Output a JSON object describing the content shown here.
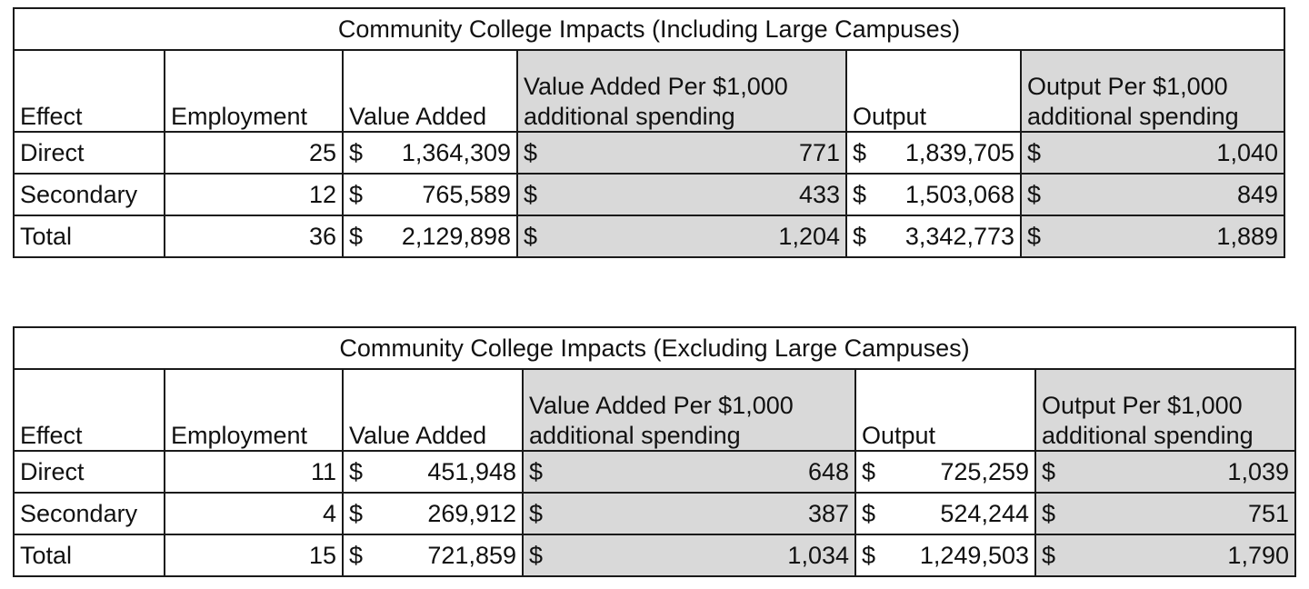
{
  "tables": [
    {
      "title": "Community College Impacts (Including Large Campuses)",
      "headers": {
        "effect": "Effect",
        "employment": "Employment",
        "value_added": "Value Added",
        "va_per_1000_line1": "Value Added Per $1,000",
        "va_per_1000_line2": "additional spending",
        "output": "Output",
        "out_per_1000_line1": "Output Per $1,000",
        "out_per_1000_line2": "additional spending"
      },
      "rows": [
        {
          "effect": "Direct",
          "employment": "25",
          "va_cur": "$",
          "va_val": "1,364,309",
          "vap_cur": "$",
          "vap_val": "771",
          "out_cur": "$",
          "out_val": "1,839,705",
          "outp_cur": "$",
          "outp_val": "1,040"
        },
        {
          "effect": "Secondary",
          "employment": "12",
          "va_cur": "$",
          "va_val": "765,589",
          "vap_cur": "$",
          "vap_val": "433",
          "out_cur": "$",
          "out_val": "1,503,068",
          "outp_cur": "$",
          "outp_val": "849"
        },
        {
          "effect": "Total",
          "employment": "36",
          "va_cur": "$",
          "va_val": "2,129,898",
          "vap_cur": "$",
          "vap_val": "1,204",
          "out_cur": "$",
          "out_val": "3,342,773",
          "outp_cur": "$",
          "outp_val": "1,889"
        }
      ]
    },
    {
      "title": "Community College Impacts (Excluding Large Campuses)",
      "headers": {
        "effect": "Effect",
        "employment": "Employment",
        "value_added": "Value Added",
        "va_per_1000_line1": "Value Added Per $1,000",
        "va_per_1000_line2": "additional spending",
        "output": "Output",
        "out_per_1000_line1": "Output Per $1,000",
        "out_per_1000_line2": "additional spending"
      },
      "rows": [
        {
          "effect": "Direct",
          "employment": "11",
          "va_cur": "$",
          "va_val": "451,948",
          "vap_cur": "$",
          "vap_val": "648",
          "out_cur": "$",
          "out_val": "725,259",
          "outp_cur": "$",
          "outp_val": "1,039"
        },
        {
          "effect": "Secondary",
          "employment": "4",
          "va_cur": "$",
          "va_val": "269,912",
          "vap_cur": "$",
          "vap_val": "387",
          "out_cur": "$",
          "out_val": "524,244",
          "outp_cur": "$",
          "outp_val": "751"
        },
        {
          "effect": "Total",
          "employment": "15",
          "va_cur": "$",
          "va_val": "721,859",
          "vap_cur": "$",
          "vap_val": "1,034",
          "out_cur": "$",
          "out_val": "1,249,503",
          "outp_cur": "$",
          "outp_val": "1,790"
        }
      ]
    }
  ],
  "colors": {
    "shaded_column": "#d9d9d9",
    "border": "#1a1a1a"
  }
}
